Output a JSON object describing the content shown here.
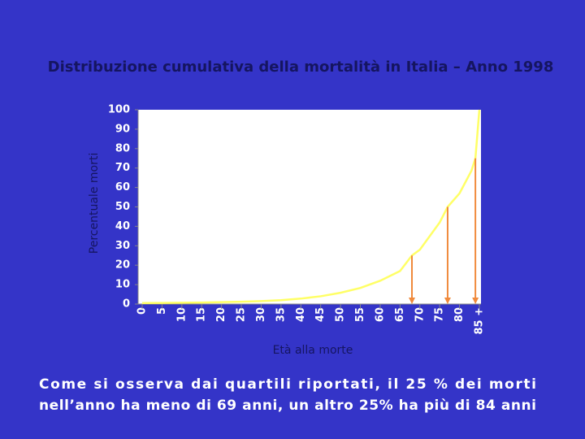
{
  "chart_data": {
    "type": "line",
    "title": "Distribuzione cumulativa della mortalità in Italia – Anno 1998",
    "y_label": "Percentuale morti",
    "x_label": "Età alla morte",
    "xlim": [
      0,
      85
    ],
    "xticks": [
      0,
      5,
      10,
      15,
      20,
      25,
      30,
      35,
      40,
      45,
      50,
      55,
      60,
      65,
      70,
      75,
      80,
      {
        "value": 85,
        "label": "85 +"
      }
    ],
    "ylim": [
      0,
      100
    ],
    "yticks": [
      0,
      10,
      20,
      30,
      40,
      50,
      60,
      70,
      80,
      90,
      100
    ],
    "series": [
      {
        "color": "#ffff66",
        "x": [
          0,
          5,
          10,
          15,
          20,
          25,
          30,
          35,
          40,
          45,
          50,
          55,
          60,
          65,
          68,
          70,
          75,
          77,
          80,
          83,
          84,
          85
        ],
        "values": [
          0.5,
          0.6,
          0.7,
          0.8,
          1,
          1.2,
          1.5,
          2,
          2.8,
          4,
          5.8,
          8.3,
          12,
          17,
          25,
          28,
          42,
          50,
          57,
          68.6,
          75,
          100
        ]
      }
    ],
    "markers": {
      "color": "#f08a3c",
      "x": [
        68,
        77,
        84
      ],
      "values": [
        25,
        50,
        75
      ]
    },
    "caption": [
      "Come si osserva dai quartili riportati, il 25 % dei morti",
      "nell’anno ha meno di 69 anni, un altro 25% ha più di 84 anni"
    ]
  }
}
